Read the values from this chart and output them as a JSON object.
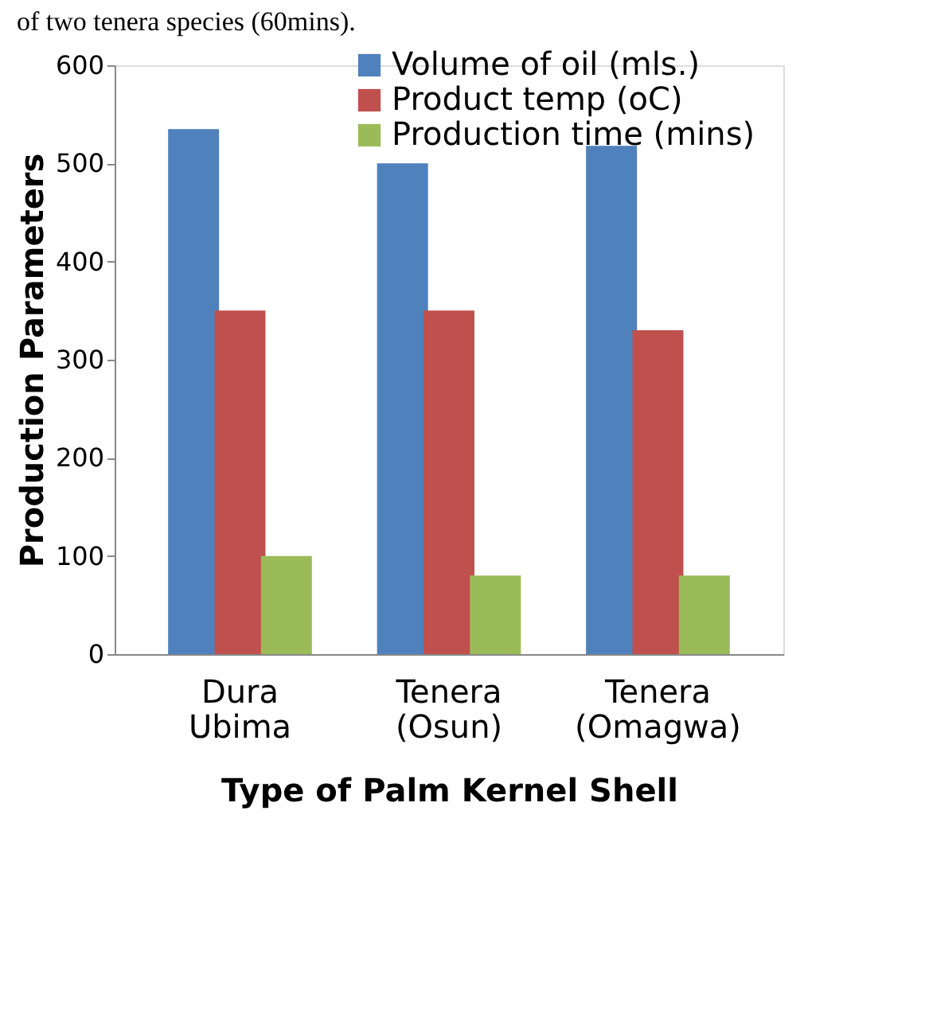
{
  "chart_data": {
    "type": "bar",
    "xlabel": "Type of Palm Kernel Shell",
    "ylabel": "Production  Parameters",
    "annotations": [
      "of two tenera species (60mins)."
    ],
    "categories": [
      "Dura Ubima",
      "Tenera (Osun)",
      "Tenera (Omagwa)"
    ],
    "series": [
      {
        "name": "Volume of oil (mls.)",
        "color": "#4f81bd",
        "values": [
          535,
          500,
          518
        ]
      },
      {
        "name": "Product temp (oC)",
        "color": "#c0504d",
        "values": [
          350,
          350,
          330
        ]
      },
      {
        "name": "Production time (mins)",
        "color": "#9bbb59",
        "values": [
          100,
          80,
          80
        ]
      }
    ],
    "ylim": [
      0,
      600
    ],
    "yticks": [
      0,
      100,
      200,
      300,
      400,
      500,
      600
    ],
    "grid": false,
    "legend": "top right"
  }
}
